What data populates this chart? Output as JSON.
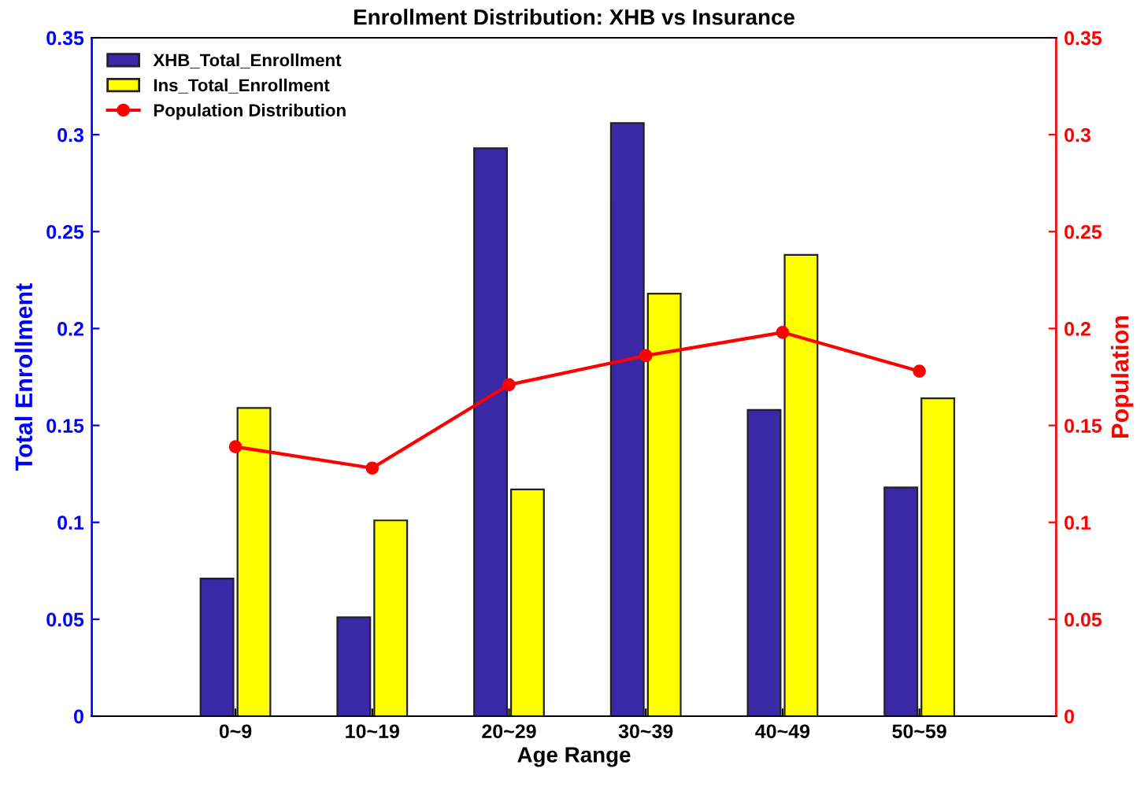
{
  "chart_data": {
    "type": "bar",
    "title": "Enrollment Distribution: XHB vs Insurance",
    "xlabel": "Age Range",
    "ylabel": "Total Enrollment",
    "y2label": "Population",
    "categories": [
      "0~9",
      "10~19",
      "20~29",
      "30~39",
      "40~49",
      "50~59"
    ],
    "series": [
      {
        "name": "XHB_Total_Enrollment",
        "color": "#3b28a6",
        "values": [
          0.071,
          0.051,
          0.293,
          0.306,
          0.158,
          0.118
        ]
      },
      {
        "name": "Ins_Total_Enrollment",
        "color": "#ffff00",
        "values": [
          0.159,
          0.101,
          0.117,
          0.218,
          0.238,
          0.164
        ]
      },
      {
        "name": "Population Distribution",
        "type": "line",
        "color": "#ff0000",
        "marker": "circle",
        "values": [
          0.139,
          0.128,
          0.171,
          0.186,
          0.198,
          0.178
        ]
      }
    ],
    "ylim": [
      0,
      0.35
    ],
    "yticks": [
      0,
      0.05,
      0.1,
      0.15,
      0.2,
      0.25,
      0.3,
      0.35
    ],
    "y2lim": [
      0,
      0.35
    ],
    "y2ticks": [
      0,
      0.05,
      0.1,
      0.15,
      0.2,
      0.25,
      0.3,
      0.35
    ],
    "grid": false,
    "legend": "top left"
  }
}
